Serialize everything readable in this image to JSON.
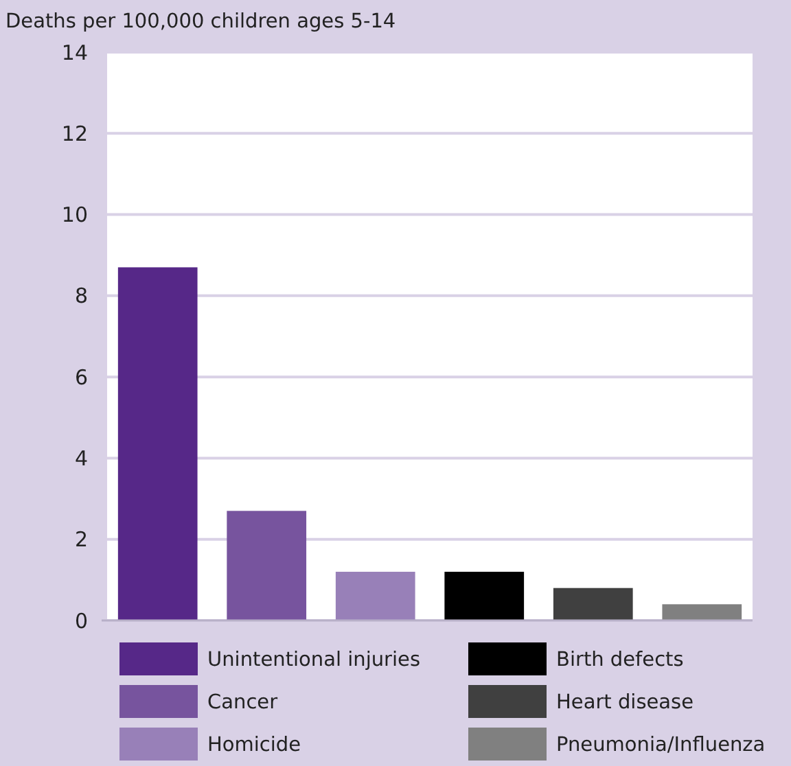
{
  "chart_data": {
    "type": "bar",
    "ylabel": "Deaths per 100,000 children ages 5-14",
    "categories": [
      null,
      null,
      null,
      null,
      null,
      null
    ],
    "series": [
      {
        "name": "Unintentional injuries",
        "color": "#562888",
        "values": [
          8.7,
          null,
          null,
          null,
          null,
          null
        ]
      },
      {
        "name": "Cancer",
        "color": "#77549e",
        "values": [
          null,
          2.7,
          null,
          null,
          null,
          null
        ]
      },
      {
        "name": "Homicide",
        "color": "#9880b8",
        "values": [
          null,
          null,
          1.2,
          null,
          null,
          null
        ]
      },
      {
        "name": "Birth defects",
        "color": "#000000",
        "values": [
          null,
          null,
          null,
          1.2,
          null,
          null
        ]
      },
      {
        "name": "Heart disease",
        "color": "#404040",
        "values": [
          null,
          null,
          null,
          null,
          0.8,
          null
        ]
      },
      {
        "name": "Pneumonia/Influenza",
        "color": "#808080",
        "values": [
          null,
          null,
          null,
          null,
          null,
          0.4
        ]
      }
    ],
    "stacked": true,
    "ylim": [
      0,
      14
    ],
    "yticks": [
      0,
      2,
      4,
      6,
      8,
      10,
      12,
      14
    ],
    "grid": "y",
    "legend": "bottom",
    "tick_labels": "y"
  }
}
